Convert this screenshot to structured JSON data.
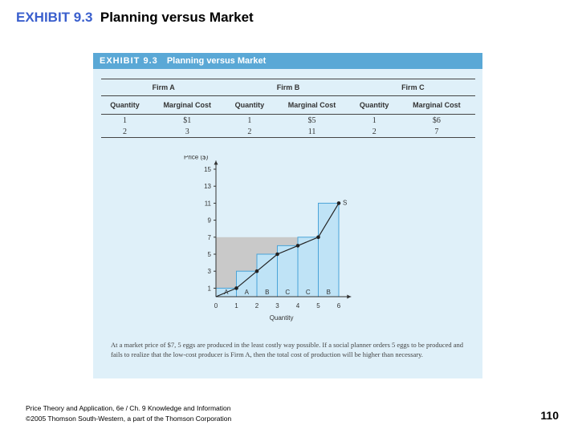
{
  "slide": {
    "exhibit_number": "EXHIBIT 9.3",
    "title": "Planning versus Market",
    "footer_line1": "Price Theory and Application, 6e / Ch. 9 Knowledge and Information",
    "footer_line2": "©2005 Thomson South-Western, a part of the Thomson Corporation",
    "page_number": "110"
  },
  "exhibit": {
    "label": "EXHIBIT 9.3",
    "title": "Planning versus Market",
    "caption": "At a market price of $7, 5 eggs are produced in the least costly way possible. If a social planner orders 5 eggs to be produced and fails to realize that the low-cost producer is Firm A, then the total cost of production will be higher than necessary."
  },
  "table": {
    "firms": [
      "Firm A",
      "Firm B",
      "Firm C"
    ],
    "col_quantity": "Quantity",
    "col_marginal_cost": "Marginal Cost",
    "rows": [
      {
        "a_q": "1",
        "a_mc": "$1",
        "b_q": "1",
        "b_mc": "$5",
        "c_q": "1",
        "c_mc": "$6"
      },
      {
        "a_q": "2",
        "a_mc": "3",
        "b_q": "2",
        "b_mc": "11",
        "c_q": "2",
        "c_mc": "7"
      }
    ]
  },
  "chart_data": {
    "type": "bar",
    "ylabel": "Price ($)",
    "xlabel": "Quantity",
    "y_ticks": [
      "1",
      "3",
      "5",
      "7",
      "9",
      "11",
      "13",
      "15"
    ],
    "x_ticks": [
      "0",
      "1",
      "2",
      "3",
      "4",
      "5",
      "6"
    ],
    "ylim": [
      0,
      16
    ],
    "xlim": [
      0,
      6.6
    ],
    "bars": [
      {
        "firm": "A",
        "x_start": 0,
        "x_end": 1,
        "value": 1
      },
      {
        "firm": "A",
        "x_start": 1,
        "x_end": 2,
        "value": 3
      },
      {
        "firm": "B",
        "x_start": 2,
        "x_end": 3,
        "value": 5
      },
      {
        "firm": "C",
        "x_start": 3,
        "x_end": 4,
        "value": 6
      },
      {
        "firm": "C",
        "x_start": 4,
        "x_end": 5,
        "value": 7
      },
      {
        "firm": "B",
        "x_start": 5,
        "x_end": 6,
        "value": 11
      }
    ],
    "supply_points": [
      [
        1,
        1
      ],
      [
        2,
        3
      ],
      [
        3,
        5
      ],
      [
        4,
        6
      ],
      [
        5,
        7
      ],
      [
        6,
        11
      ]
    ],
    "supply_label": "S",
    "market_price": 7,
    "shaded_region": {
      "x_start": 0,
      "x_end": 5,
      "y_top": 7
    },
    "colors": {
      "bar_fill": "#bfe3f6",
      "bar_stroke": "#4aa3d8",
      "shade": "#c9c9c9",
      "line": "#222222"
    }
  }
}
